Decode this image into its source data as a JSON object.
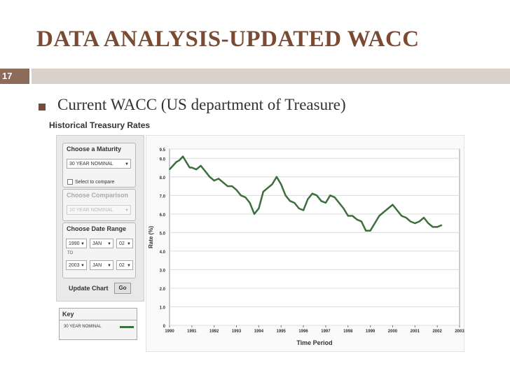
{
  "slide": {
    "title": "DATA ANALYSIS-UPDATED WACC",
    "number": "17",
    "bullet": "Current WACC (US department of Treasure)",
    "colors": {
      "title": "#7a4a33",
      "number_box": "#8c6b58",
      "rule": "#d9d1ca"
    }
  },
  "panel": {
    "title": "Historical Treasury Rates",
    "maturity": {
      "label": "Choose a Maturity",
      "value": "30 YEAR NOMINAL",
      "compare_label": "Select to compare"
    },
    "comparison": {
      "label": "Choose Comparison",
      "value": "10 YEAR NOMINAL"
    },
    "date_range": {
      "label": "Choose Date Range",
      "from": {
        "year": "1990",
        "month": "JAN",
        "day": "02"
      },
      "to_label": "TO",
      "to": {
        "year": "2003",
        "month": "JAN",
        "day": "02"
      }
    },
    "update_label": "Update Chart",
    "go_label": "Go",
    "key": {
      "title": "Key",
      "entry": "30 YEAR NOMINAL"
    }
  },
  "chart_data": {
    "type": "line",
    "title": "",
    "xlabel": "Time Period",
    "ylabel": "Rate (%)",
    "xlim": [
      1990,
      2003
    ],
    "ylim": [
      0,
      9.5
    ],
    "x_ticks": [
      "1990",
      "1991",
      "1992",
      "1993",
      "1994",
      "1995",
      "1996",
      "1997",
      "1998",
      "1999",
      "2000",
      "2001",
      "2002",
      "2003"
    ],
    "y_ticks": [
      "0",
      "1.0",
      "2.0",
      "3.0",
      "4.0",
      "5.0",
      "6.0",
      "7.0",
      "8.0",
      "9.0",
      "9.5"
    ],
    "grid": true,
    "series": [
      {
        "name": "30 YEAR NOMINAL",
        "color": "#3d6e3d",
        "x": [
          1990.0,
          1990.15,
          1990.3,
          1990.45,
          1990.6,
          1990.75,
          1990.9,
          1991.0,
          1991.2,
          1991.4,
          1991.6,
          1991.8,
          1992.0,
          1992.2,
          1992.4,
          1992.6,
          1992.8,
          1993.0,
          1993.2,
          1993.4,
          1993.6,
          1993.8,
          1994.0,
          1994.2,
          1994.4,
          1994.6,
          1994.8,
          1995.0,
          1995.2,
          1995.4,
          1995.6,
          1995.8,
          1996.0,
          1996.2,
          1996.4,
          1996.6,
          1996.8,
          1997.0,
          1997.2,
          1997.4,
          1997.6,
          1997.8,
          1998.0,
          1998.2,
          1998.4,
          1998.6,
          1998.8,
          1999.0,
          1999.2,
          1999.4,
          1999.6,
          1999.8,
          2000.0,
          2000.2,
          2000.4,
          2000.6,
          2000.8,
          2001.0,
          2001.2,
          2001.4,
          2001.6,
          2001.8,
          2002.0,
          2002.2
        ],
        "values": [
          8.4,
          8.6,
          8.8,
          8.9,
          9.1,
          8.8,
          8.5,
          8.5,
          8.4,
          8.6,
          8.3,
          8.0,
          7.8,
          7.9,
          7.7,
          7.5,
          7.5,
          7.3,
          7.0,
          6.9,
          6.6,
          6.0,
          6.3,
          7.2,
          7.4,
          7.6,
          8.0,
          7.6,
          7.0,
          6.7,
          6.6,
          6.3,
          6.2,
          6.8,
          7.1,
          7.0,
          6.7,
          6.6,
          7.0,
          6.9,
          6.6,
          6.3,
          5.9,
          5.9,
          5.7,
          5.6,
          5.1,
          5.1,
          5.5,
          5.9,
          6.1,
          6.3,
          6.5,
          6.2,
          5.9,
          5.8,
          5.6,
          5.5,
          5.6,
          5.8,
          5.5,
          5.3,
          5.3,
          5.4
        ]
      }
    ]
  }
}
